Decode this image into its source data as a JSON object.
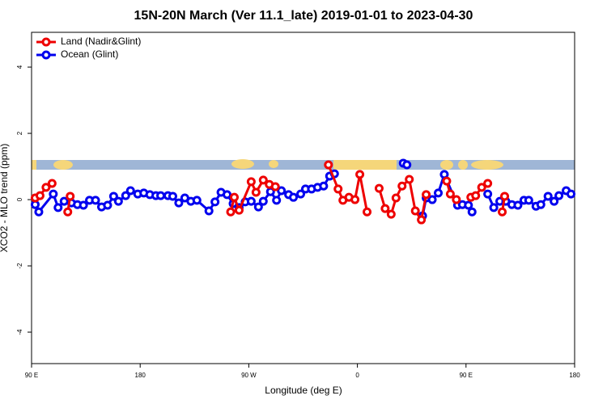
{
  "chart_data": {
    "type": "line",
    "title": "15N-20N March (Ver 11.1_late)   2019-01-01 to 2023-04-30",
    "x_label": "Longitude (deg E)",
    "y_label": "XCO2 - MLO trend (ppm)",
    "xlim": [
      90,
      540
    ],
    "ylim": [
      -4.95,
      5.05
    ],
    "xticks": [
      {
        "value": 90,
        "label": "90 E"
      },
      180,
      {
        "value": 270,
        "label": "90 W"
      },
      {
        "value": 360,
        "label": "0"
      },
      {
        "value": 450,
        "label": "90 E"
      },
      {
        "value": 540,
        "label": "180"
      }
    ],
    "yticks": [
      -4,
      -2,
      0,
      2,
      4
    ],
    "legend": "topleft",
    "series": [
      {
        "name": "Ocean (Glint)",
        "color": "#0000ee",
        "x": [
          93,
          96,
          108,
          112,
          117,
          123,
          128,
          133,
          138,
          143,
          148,
          153,
          158,
          162,
          168,
          172,
          178,
          183,
          188,
          193,
          197,
          203,
          207,
          212,
          217,
          222,
          227,
          237,
          242,
          247,
          252,
          257,
          262,
          267,
          272,
          278,
          282,
          288,
          293,
          297,
          303,
          307,
          313,
          317,
          322,
          327,
          332,
          337,
          341,
          null,
          398,
          401,
          null,
          414,
          417,
          422,
          427,
          432,
          443,
          447,
          452,
          455,
          null,
          468,
          473,
          478,
          483,
          488,
          493,
          498,
          502,
          508,
          512,
          518,
          523,
          527,
          533,
          537
        ],
        "values": [
          -0.15,
          -0.37,
          0.17,
          -0.24,
          -0.05,
          -0.1,
          -0.15,
          -0.17,
          -0.02,
          -0.02,
          -0.22,
          -0.17,
          0.1,
          -0.05,
          0.12,
          0.27,
          0.17,
          0.2,
          0.15,
          0.12,
          0.12,
          0.12,
          0.1,
          -0.1,
          0.05,
          -0.05,
          -0.02,
          -0.34,
          -0.07,
          0.22,
          0.15,
          -0.12,
          -0.24,
          -0.07,
          -0.05,
          -0.22,
          -0.05,
          0.24,
          -0.02,
          0.27,
          0.15,
          0.07,
          0.17,
          0.32,
          0.32,
          0.37,
          0.41,
          0.71,
          0.78,
          null,
          1.1,
          1.05,
          null,
          -0.49,
          0.05,
          0,
          0.2,
          0.76,
          -0.17,
          -0.15,
          -0.17,
          -0.37,
          null,
          0.17,
          -0.24,
          -0.05,
          -0.05,
          -0.15,
          -0.17,
          -0.02,
          -0.02,
          -0.2,
          -0.15,
          0.1,
          -0.05,
          0.12,
          0.27,
          0.17
        ]
      },
      {
        "name": "Land (Nadir&Glint)",
        "color": "#ee0000",
        "x": [
          93,
          97,
          102,
          107,
          null,
          120,
          122,
          null,
          255,
          258,
          262,
          272,
          276,
          282,
          287,
          292,
          null,
          336,
          344,
          348,
          353,
          358,
          362,
          368,
          null,
          378,
          383,
          388,
          392,
          397,
          403,
          408,
          413,
          417,
          null,
          434,
          437,
          442,
          null,
          454,
          458,
          463,
          468,
          null,
          480,
          482
        ],
        "values": [
          0.05,
          0.12,
          0.37,
          0.49,
          null,
          -0.37,
          0.1,
          null,
          -0.37,
          0.07,
          -0.32,
          0.54,
          0.22,
          0.59,
          0.46,
          0.39,
          null,
          1.05,
          0.32,
          -0.02,
          0.07,
          0,
          0.76,
          -0.37,
          null,
          0.34,
          -0.27,
          -0.44,
          0.05,
          0.41,
          0.61,
          -0.34,
          -0.61,
          0.15,
          null,
          0.56,
          0.17,
          0,
          null,
          0.07,
          0.12,
          0.37,
          0.49,
          null,
          -0.37,
          0.1
        ]
      }
    ]
  }
}
